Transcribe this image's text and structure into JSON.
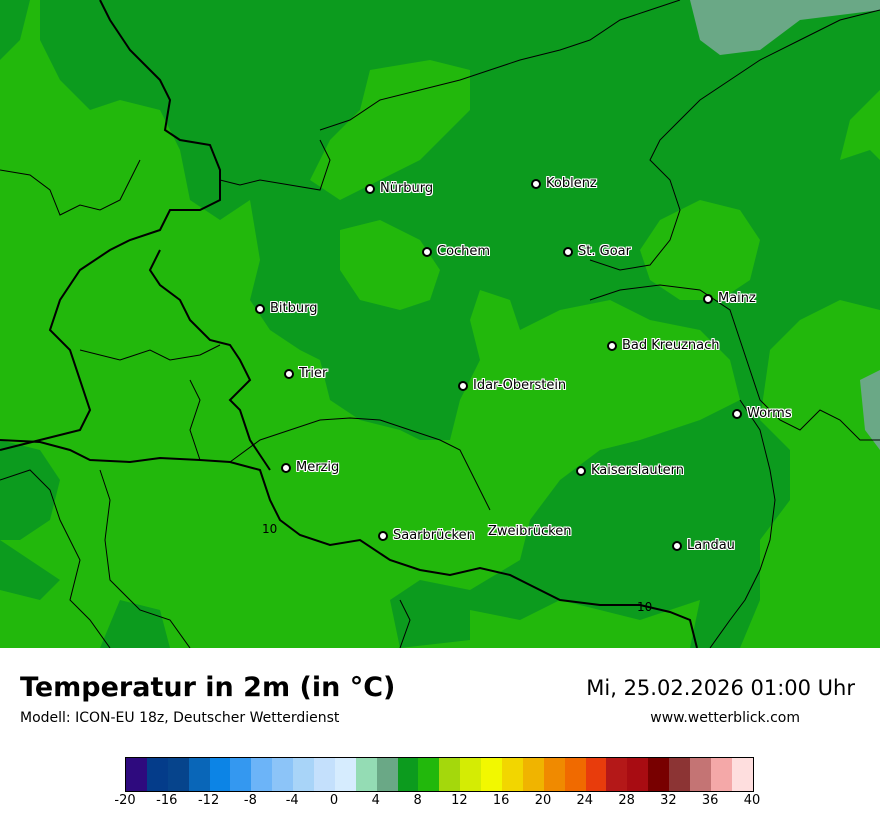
{
  "map": {
    "cities": [
      {
        "name": "Nürburg"
      },
      {
        "name": "Koblenz"
      },
      {
        "name": "Cochem"
      },
      {
        "name": "St. Goar"
      },
      {
        "name": "Mainz"
      },
      {
        "name": "Bitburg"
      },
      {
        "name": "Bad Kreuznach"
      },
      {
        "name": "Trier"
      },
      {
        "name": "Idar-Oberstein"
      },
      {
        "name": "Worms"
      },
      {
        "name": "Merzig"
      },
      {
        "name": "Kaiserslautern"
      },
      {
        "name": "Saarbrücken"
      },
      {
        "name": "Zweibrücken"
      },
      {
        "name": "Landau"
      }
    ],
    "isolines": [
      "10",
      "10"
    ],
    "colors": {
      "light_green": "#22b80c",
      "dark_green": "#0c9b1e",
      "grey_green": "#6aa886"
    }
  },
  "footer": {
    "title": "Temperatur in 2m (in °C)",
    "model": "Modell: ICON-EU 18z, Deutscher Wetterdienst",
    "datetime": "Mi, 25.02.2026 01:00 Uhr",
    "website": "www.wetterblick.com"
  },
  "legend": {
    "colors": [
      "#2e0a7e",
      "#043c8a",
      "#06448c",
      "#0966b8",
      "#0c84e6",
      "#3498f0",
      "#6cb4f8",
      "#8cc4f8",
      "#a8d4f8",
      "#c4e0fc",
      "#d6ecfe",
      "#94dcb4",
      "#6aa886",
      "#0c9b1e",
      "#22b80c",
      "#a4d80c",
      "#d4ec04",
      "#f2f800",
      "#f2d600",
      "#f0b400",
      "#f08a00",
      "#f06a00",
      "#e83c0c",
      "#b41818",
      "#a80c12",
      "#780000",
      "#8c3434",
      "#c47474",
      "#f4a8a8",
      "#fedede"
    ],
    "ticks": [
      "-20",
      "-16",
      "-12",
      "-8",
      "-4",
      "0",
      "4",
      "8",
      "12",
      "16",
      "20",
      "24",
      "28",
      "32",
      "36",
      "40"
    ]
  }
}
